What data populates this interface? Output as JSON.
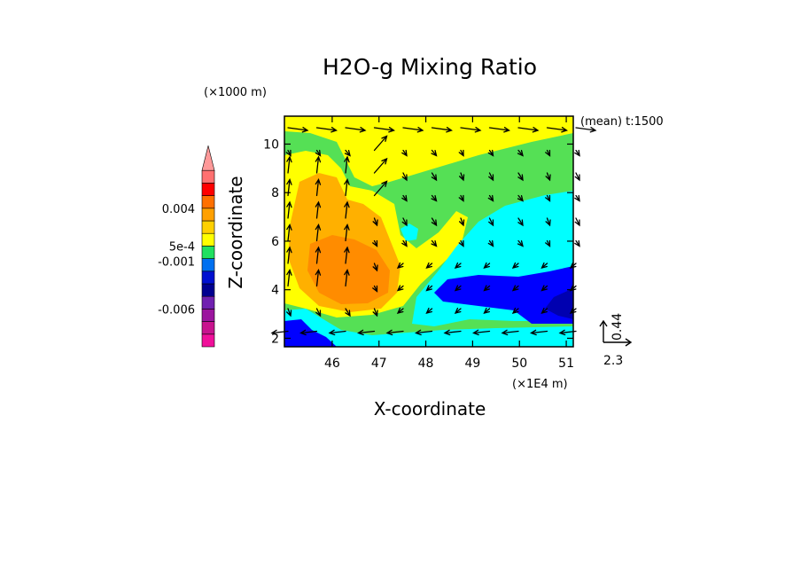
{
  "chart_data": {
    "type": "contour-vector",
    "title": "H2O-g Mixing Ratio",
    "xlabel": "X-coordinate",
    "ylabel": "Z-coordinate",
    "x_unit": "(×1E4 m)",
    "y_unit": "(×1000 m)",
    "annotation": "(mean) t:1500",
    "x_ticks": [
      "46",
      "47",
      "48",
      "49",
      "50",
      "51"
    ],
    "x_tick_values": [
      46,
      47,
      48,
      49,
      50,
      51
    ],
    "y_ticks": [
      "2",
      "4",
      "6",
      "8",
      "10"
    ],
    "y_tick_values": [
      2,
      4,
      6,
      8,
      10
    ],
    "xlim": [
      44.98,
      51.15
    ],
    "ylim": [
      1.65,
      11.15
    ],
    "colorbar_labels": [
      {
        "text": "0.004",
        "level": 11
      },
      {
        "text": "5e-4",
        "level": 8
      },
      {
        "text": "-0.001",
        "level": 6.8
      },
      {
        "text": "-0.006",
        "level": 3
      }
    ],
    "colorbar_colors": [
      "#f0109a",
      "#c8138e",
      "#9b159e",
      "#7020b0",
      "#000090",
      "#0010d0",
      "#0070f0",
      "#20e060",
      "#ffff00",
      "#ffd000",
      "#ffa000",
      "#ff7000",
      "#ff0000",
      "#ff7070"
    ],
    "colorbar_tip_color": "#ff9999",
    "reference_vector": {
      "u_label": "2.3",
      "w_label": "0.44"
    },
    "field_colors": {
      "green": "#55e055",
      "yellow": "#ffff00",
      "orange_light": "#ffb000",
      "orange": "#ff8c00",
      "cyan": "#00ffff",
      "blue": "#0000ff",
      "navy": "#0000b0"
    }
  }
}
